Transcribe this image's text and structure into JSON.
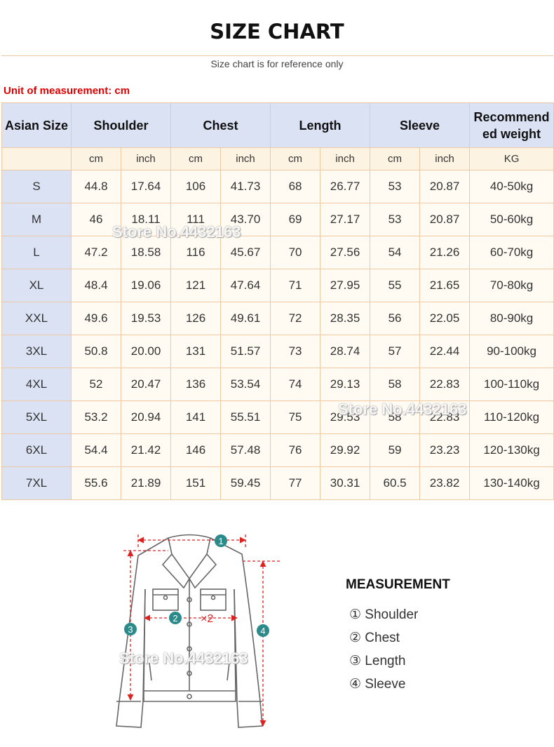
{
  "header": {
    "title": "SIZE CHART",
    "subtitle": "Size chart is for reference only"
  },
  "unit_note": "Unit of measurement: cm",
  "table": {
    "columns": [
      "Asian Size",
      "Shoulder",
      "Chest",
      "Length",
      "Sleeve",
      "Recommend\ned weight"
    ],
    "units": [
      "cm",
      "inch",
      "cm",
      "inch",
      "cm",
      "inch",
      "cm",
      "inch",
      "KG"
    ],
    "rows": [
      [
        "S",
        "44.8",
        "17.64",
        "106",
        "41.73",
        "68",
        "26.77",
        "53",
        "20.87",
        "40-50kg"
      ],
      [
        "M",
        "46",
        "18.11",
        "111",
        "43.70",
        "69",
        "27.17",
        "53",
        "20.87",
        "50-60kg"
      ],
      [
        "L",
        "47.2",
        "18.58",
        "116",
        "45.67",
        "70",
        "27.56",
        "54",
        "21.26",
        "60-70kg"
      ],
      [
        "XL",
        "48.4",
        "19.06",
        "121",
        "47.64",
        "71",
        "27.95",
        "55",
        "21.65",
        "70-80kg"
      ],
      [
        "XXL",
        "49.6",
        "19.53",
        "126",
        "49.61",
        "72",
        "28.35",
        "56",
        "22.05",
        "80-90kg"
      ],
      [
        "3XL",
        "50.8",
        "20.00",
        "131",
        "51.57",
        "73",
        "28.74",
        "57",
        "22.44",
        "90-100kg"
      ],
      [
        "4XL",
        "52",
        "20.47",
        "136",
        "53.54",
        "74",
        "29.13",
        "58",
        "22.83",
        "100-110kg"
      ],
      [
        "5XL",
        "53.2",
        "20.94",
        "141",
        "55.51",
        "75",
        "29.53",
        "58",
        "22.83",
        "110-120kg"
      ],
      [
        "6XL",
        "54.4",
        "21.42",
        "146",
        "57.48",
        "76",
        "29.92",
        "59",
        "23.23",
        "120-130kg"
      ],
      [
        "7XL",
        "55.6",
        "21.89",
        "151",
        "59.45",
        "77",
        "30.31",
        "60.5",
        "23.82",
        "130-140kg"
      ]
    ]
  },
  "watermarks": [
    "Store No.4432163",
    "Store No.4432163",
    "Store No.4432163"
  ],
  "diagram": {
    "markers": [
      "1",
      "2",
      "3",
      "4"
    ],
    "multiplier": "×2",
    "legend_title": "MEASUREMENT",
    "legend": [
      "① Shoulder",
      "② Chest",
      "③ Length",
      "④ Sleeve"
    ]
  }
}
